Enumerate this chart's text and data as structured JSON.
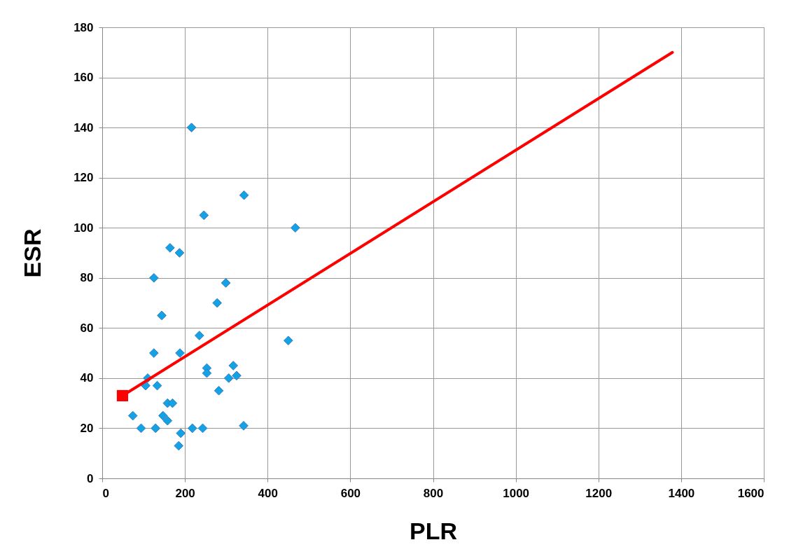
{
  "chart_data": {
    "type": "scatter",
    "xlabel": "PLR",
    "ylabel": "ESR",
    "xlim": [
      0,
      1600
    ],
    "xticks": [
      0,
      200,
      400,
      600,
      800,
      1000,
      1200,
      1400,
      1600
    ],
    "ylim": [
      0,
      180
    ],
    "yticks": [
      0,
      20,
      40,
      60,
      80,
      100,
      120,
      140,
      160,
      180
    ],
    "grid": true,
    "series": [
      {
        "marker": "diamond",
        "color": "#11a3e4",
        "x": [
          216,
          343,
          246,
          467,
          164,
          187,
          125,
          299,
          278,
          144,
          235,
          450,
          125,
          188,
          253,
          253,
          317,
          325,
          306,
          282,
          110,
          105,
          133,
          158,
          170,
          74,
          147,
          158,
          94,
          129,
          190,
          218,
          243,
          342,
          185
        ],
        "values": [
          140,
          113,
          105,
          100,
          92,
          90,
          80,
          78,
          70,
          65,
          57,
          55,
          50,
          50,
          44,
          42,
          45,
          41,
          40,
          35,
          40,
          37,
          37,
          30,
          30,
          25,
          25,
          23,
          20,
          20,
          18,
          20,
          20,
          21,
          13
        ]
      },
      {
        "type": "line",
        "marker": "square",
        "color": "#ff0000",
        "x": [
          49,
          1379
        ],
        "values": [
          33,
          170
        ]
      }
    ]
  }
}
